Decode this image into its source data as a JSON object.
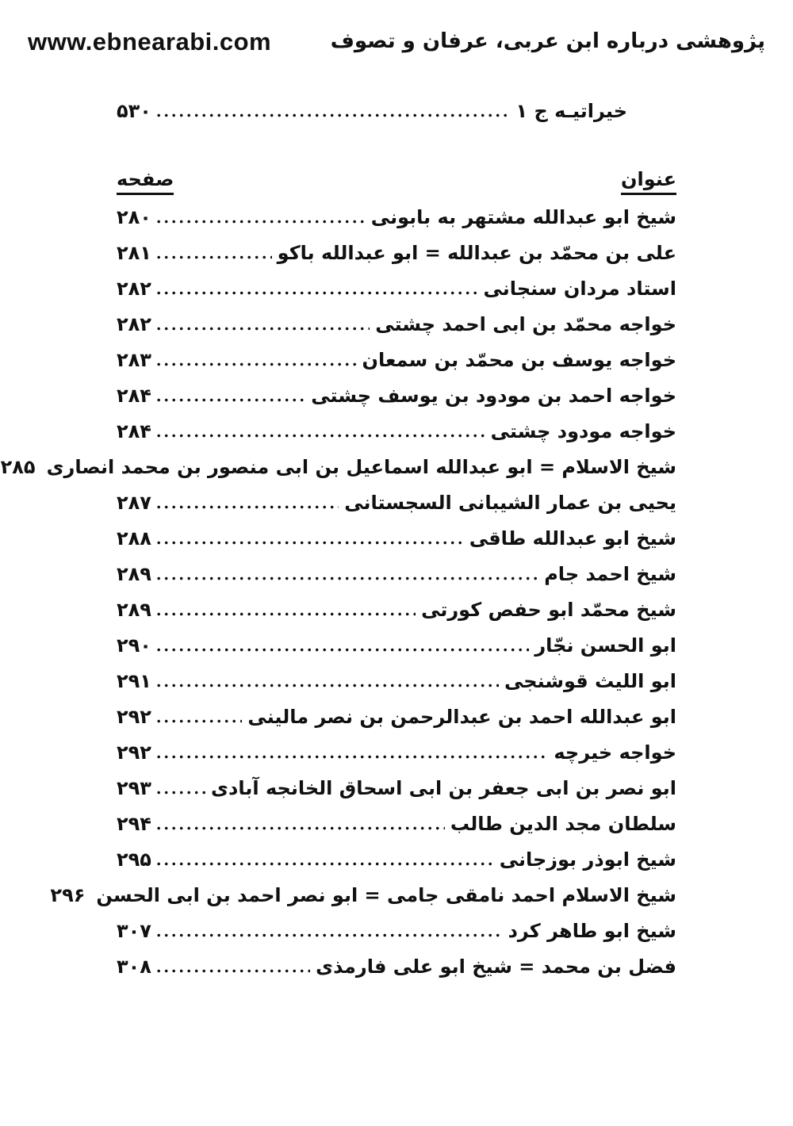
{
  "header": {
    "site_url": "www.ebnearabi.com",
    "book_title": "پژوهشی درباره ابن عربی، عرفان و تصوف"
  },
  "top_entry": {
    "title": "خیراتیـه ج ۱",
    "page": "۵۳۰"
  },
  "columns": {
    "title_label": "عنوان",
    "page_label": "صفحه"
  },
  "entries": [
    {
      "title": "شیخ ابو عبدالله مشتهر به بابونی",
      "page": "۲۸۰"
    },
    {
      "title": "علی بن محمّد بن عبدالله = ابو عبدالله باکو",
      "page": "۲۸۱"
    },
    {
      "title": "استاد مردان سنجانی",
      "page": "۲۸۲"
    },
    {
      "title": "خواجه محمّد بن ابی احمد چشتی",
      "page": "۲۸۲"
    },
    {
      "title": "خواجه یوسف بن محمّد بن سمعان",
      "page": "۲۸۳"
    },
    {
      "title": "خواجه احمد بن مودود بن یوسف چشتی",
      "page": "۲۸۴"
    },
    {
      "title": "خواجه مودود چشتی",
      "page": "۲۸۴"
    },
    {
      "title": "شیخ الاسلام = ابو عبدالله اسماعیل بن ابی منصور بن محمد انصاری",
      "page": "۲۸۵"
    },
    {
      "title": "یحیی بن عمار الشیبانی السجستانی",
      "page": "۲۸۷"
    },
    {
      "title": "شیخ ابو عبدالله طاقی",
      "page": "۲۸۸"
    },
    {
      "title": "شیخ احمد جام",
      "page": "۲۸۹"
    },
    {
      "title": "شیخ محمّد ابو حفص کورتی",
      "page": "۲۸۹"
    },
    {
      "title": "ابو الحسن نجّار",
      "page": "۲۹۰"
    },
    {
      "title": "ابو اللیث قوشنجی",
      "page": "۲۹۱"
    },
    {
      "title": "ابو عبدالله احمد بن عبدالرحمن بن نصر مالینی",
      "page": "۲۹۲"
    },
    {
      "title": "خواجه خیرچه",
      "page": "۲۹۲"
    },
    {
      "title": "ابو نصر بن ابی جعفر بن ابی اسحاق الخانجه آبادی",
      "page": "۲۹۳"
    },
    {
      "title": "سلطان مجد الدین طالب",
      "page": "۲۹۴"
    },
    {
      "title": "شیخ ابوذر بوزجانی",
      "page": "۲۹۵"
    },
    {
      "title": "شیخ الاسلام احمد نامقی جامی = ابو نصر احمد بن ابی الحسن",
      "page": "۲۹۶"
    },
    {
      "title": "شیخ ابو طاهر کرد",
      "page": "۳۰۷"
    },
    {
      "title": "فضل بن محمد = شیخ ابو علی فارمذی",
      "page": "۳۰۸"
    }
  ]
}
